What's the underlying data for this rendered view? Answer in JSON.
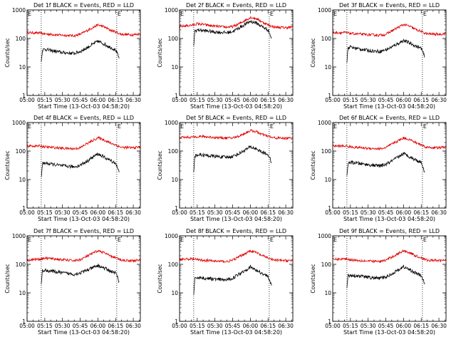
{
  "figure": {
    "x_tick_labels": [
      "05:00",
      "05:15",
      "05:30",
      "05:45",
      "06:00",
      "06:15",
      "06:30"
    ],
    "y_tick_labels": [
      "1",
      "10",
      "100",
      "1000"
    ],
    "xlabel": "Start Time (13-Oct-03 04:58:20)",
    "ylabel": "Counts/sec",
    "marker_label": "E",
    "colors": {
      "events": "#000000",
      "lld": "#e00000",
      "axes": "#000000"
    }
  },
  "chart_data": [
    {
      "type": "line",
      "title": "Det 1f BLACK = Events, RED = LLD",
      "xlabel": "Start Time (13-Oct-03 04:58:20)",
      "ylabel": "Counts/sec",
      "yscale": "log",
      "xlim": [
        "05:00",
        "06:36"
      ],
      "ylim": [
        1,
        1000
      ],
      "xticks": [
        "05:00",
        "05:15",
        "05:30",
        "05:45",
        "06:00",
        "06:15",
        "06:30"
      ],
      "yticks": [
        1,
        10,
        100,
        1000
      ],
      "markers": [
        "05:12",
        "06:16"
      ],
      "x": [
        "05:00",
        "05:12",
        "05:13",
        "05:15",
        "05:20",
        "05:30",
        "05:40",
        "05:45",
        "05:50",
        "06:00",
        "06:05",
        "06:10",
        "06:15",
        "06:18",
        "06:20",
        "06:30",
        "06:36"
      ],
      "series": [
        {
          "name": "LLD",
          "color": "#e00000",
          "values": [
            160,
            155,
            150,
            145,
            140,
            130,
            125,
            140,
            180,
            300,
            260,
            200,
            170,
            150,
            140,
            135,
            145
          ]
        },
        {
          "name": "Events",
          "color": "#000000",
          "values": [
            null,
            15,
            40,
            42,
            38,
            32,
            30,
            35,
            45,
            80,
            65,
            50,
            40,
            20,
            null,
            null,
            null
          ]
        }
      ]
    },
    {
      "type": "line",
      "title": "Det 2f BLACK = Events, RED = LLD",
      "xlabel": "Start Time (13-Oct-03 04:58:20)",
      "ylabel": "Counts/sec",
      "yscale": "log",
      "xlim": [
        "05:00",
        "06:36"
      ],
      "ylim": [
        1,
        1000
      ],
      "xticks": [
        "05:00",
        "05:15",
        "05:30",
        "05:45",
        "06:00",
        "06:15",
        "06:30"
      ],
      "yticks": [
        1,
        10,
        100,
        1000
      ],
      "markers": [
        "05:12",
        "06:16"
      ],
      "x": [
        "05:00",
        "05:12",
        "05:13",
        "05:15",
        "05:20",
        "05:30",
        "05:40",
        "05:45",
        "05:50",
        "06:00",
        "06:05",
        "06:10",
        "06:15",
        "06:18",
        "06:20",
        "06:30",
        "06:36"
      ],
      "series": [
        {
          "name": "LLD",
          "color": "#e00000",
          "values": [
            260,
            300,
            310,
            330,
            310,
            270,
            250,
            260,
            320,
            550,
            500,
            380,
            300,
            270,
            250,
            240,
            250
          ]
        },
        {
          "name": "Events",
          "color": "#000000",
          "values": [
            null,
            60,
            180,
            200,
            190,
            170,
            160,
            175,
            230,
            400,
            350,
            260,
            200,
            100,
            null,
            null,
            null
          ]
        }
      ]
    },
    {
      "type": "line",
      "title": "Det 3f BLACK = Events, RED = LLD",
      "xlabel": "Start Time (13-Oct-03 04:58:20)",
      "ylabel": "Counts/sec",
      "yscale": "log",
      "xlim": [
        "05:00",
        "06:36"
      ],
      "ylim": [
        1,
        1000
      ],
      "xticks": [
        "05:00",
        "05:15",
        "05:30",
        "05:45",
        "06:00",
        "06:15",
        "06:30"
      ],
      "yticks": [
        1,
        10,
        100,
        1000
      ],
      "markers": [
        "05:12",
        "06:16"
      ],
      "x": [
        "05:00",
        "05:12",
        "05:13",
        "05:15",
        "05:20",
        "05:30",
        "05:40",
        "05:45",
        "05:50",
        "06:00",
        "06:05",
        "06:10",
        "06:15",
        "06:18",
        "06:20",
        "06:30",
        "06:36"
      ],
      "series": [
        {
          "name": "LLD",
          "color": "#e00000",
          "values": [
            160,
            160,
            155,
            150,
            145,
            135,
            130,
            140,
            185,
            310,
            270,
            210,
            175,
            155,
            145,
            140,
            150
          ]
        },
        {
          "name": "Events",
          "color": "#000000",
          "values": [
            null,
            15,
            48,
            50,
            45,
            38,
            35,
            40,
            50,
            85,
            70,
            55,
            45,
            22,
            null,
            null,
            null
          ]
        }
      ]
    },
    {
      "type": "line",
      "title": "Det 4f BLACK = Events, RED = LLD",
      "xlabel": "Start Time (13-Oct-03 04:58:20)",
      "ylabel": "Counts/sec",
      "yscale": "log",
      "xlim": [
        "05:00",
        "06:36"
      ],
      "ylim": [
        1,
        1000
      ],
      "xticks": [
        "05:00",
        "05:15",
        "05:30",
        "05:45",
        "06:00",
        "06:15",
        "06:30"
      ],
      "yticks": [
        1,
        10,
        100,
        1000
      ],
      "markers": [
        "05:12",
        "06:16"
      ],
      "x": [
        "05:00",
        "05:12",
        "05:13",
        "05:15",
        "05:20",
        "05:30",
        "05:40",
        "05:45",
        "05:50",
        "06:00",
        "06:05",
        "06:10",
        "06:15",
        "06:18",
        "06:20",
        "06:30",
        "06:36"
      ],
      "series": [
        {
          "name": "LLD",
          "color": "#e00000",
          "values": [
            150,
            150,
            145,
            140,
            135,
            125,
            120,
            130,
            175,
            290,
            250,
            195,
            165,
            145,
            135,
            130,
            140
          ]
        },
        {
          "name": "Events",
          "color": "#000000",
          "values": [
            null,
            12,
            35,
            38,
            35,
            30,
            28,
            32,
            42,
            80,
            62,
            48,
            38,
            18,
            null,
            null,
            null
          ]
        }
      ]
    },
    {
      "type": "line",
      "title": "Det 5f BLACK = Events, RED = LLD",
      "xlabel": "Start Time (13-Oct-03 04:58:20)",
      "ylabel": "Counts/sec",
      "yscale": "log",
      "xlim": [
        "05:00",
        "06:36"
      ],
      "ylim": [
        1,
        1000
      ],
      "xticks": [
        "05:00",
        "05:15",
        "05:30",
        "05:45",
        "06:00",
        "06:15",
        "06:30"
      ],
      "yticks": [
        1,
        10,
        100,
        1000
      ],
      "markers": [
        "05:12",
        "06:16"
      ],
      "x": [
        "05:00",
        "05:12",
        "05:13",
        "05:15",
        "05:20",
        "05:30",
        "05:40",
        "05:45",
        "05:50",
        "06:00",
        "06:05",
        "06:10",
        "06:15",
        "06:18",
        "06:20",
        "06:30",
        "06:36"
      ],
      "series": [
        {
          "name": "LLD",
          "color": "#e00000",
          "values": [
            300,
            310,
            315,
            325,
            320,
            300,
            285,
            290,
            330,
            520,
            480,
            380,
            330,
            300,
            290,
            280,
            285
          ]
        },
        {
          "name": "Events",
          "color": "#000000",
          "values": [
            null,
            20,
            65,
            75,
            72,
            65,
            60,
            65,
            80,
            140,
            120,
            90,
            75,
            40,
            null,
            null,
            null
          ]
        }
      ]
    },
    {
      "type": "line",
      "title": "Det 6f BLACK = Events, RED = LLD",
      "xlabel": "Start Time (13-Oct-03 04:58:20)",
      "ylabel": "Counts/sec",
      "yscale": "log",
      "xlim": [
        "05:00",
        "06:36"
      ],
      "ylim": [
        1,
        1000
      ],
      "xticks": [
        "05:00",
        "05:15",
        "05:30",
        "05:45",
        "06:00",
        "06:15",
        "06:30"
      ],
      "yticks": [
        1,
        10,
        100,
        1000
      ],
      "markers": [
        "05:12",
        "06:16"
      ],
      "x": [
        "05:00",
        "05:12",
        "05:13",
        "05:15",
        "05:20",
        "05:30",
        "05:40",
        "05:45",
        "05:50",
        "06:00",
        "06:05",
        "06:10",
        "06:15",
        "06:18",
        "06:20",
        "06:30",
        "06:36"
      ],
      "series": [
        {
          "name": "LLD",
          "color": "#e00000",
          "values": [
            150,
            150,
            145,
            140,
            135,
            125,
            120,
            130,
            175,
            290,
            255,
            200,
            165,
            145,
            135,
            130,
            140
          ]
        },
        {
          "name": "Events",
          "color": "#000000",
          "values": [
            null,
            12,
            38,
            40,
            38,
            33,
            30,
            34,
            44,
            82,
            64,
            50,
            40,
            18,
            null,
            null,
            null
          ]
        }
      ]
    },
    {
      "type": "line",
      "title": "Det 7f BLACK = Events, RED = LLD",
      "xlabel": "Start Time (13-Oct-03 04:58:20)",
      "ylabel": "Counts/sec",
      "yscale": "log",
      "xlim": [
        "05:00",
        "06:36"
      ],
      "ylim": [
        1,
        1000
      ],
      "xticks": [
        "05:00",
        "05:15",
        "05:30",
        "05:45",
        "06:00",
        "06:15",
        "06:30"
      ],
      "yticks": [
        1,
        10,
        100,
        1000
      ],
      "markers": [
        "05:12",
        "06:16"
      ],
      "x": [
        "05:00",
        "05:12",
        "05:13",
        "05:15",
        "05:20",
        "05:30",
        "05:40",
        "05:45",
        "05:50",
        "06:00",
        "06:05",
        "06:10",
        "06:15",
        "06:18",
        "06:20",
        "06:30",
        "06:36"
      ],
      "series": [
        {
          "name": "LLD",
          "color": "#e00000",
          "values": [
            140,
            155,
            160,
            165,
            160,
            145,
            135,
            145,
            185,
            300,
            260,
            200,
            170,
            150,
            140,
            135,
            140
          ]
        },
        {
          "name": "Events",
          "color": "#000000",
          "values": [
            null,
            20,
            60,
            62,
            58,
            50,
            45,
            50,
            60,
            90,
            75,
            60,
            50,
            25,
            null,
            null,
            null
          ]
        }
      ]
    },
    {
      "type": "line",
      "title": "Det 8f BLACK = Events, RED = LLD",
      "xlabel": "Start Time (13-Oct-03 04:58:20)",
      "ylabel": "Counts/sec",
      "yscale": "log",
      "xlim": [
        "05:00",
        "06:36"
      ],
      "ylim": [
        1,
        1000
      ],
      "xticks": [
        "05:00",
        "05:15",
        "05:30",
        "05:45",
        "06:00",
        "06:15",
        "06:30"
      ],
      "yticks": [
        1,
        10,
        100,
        1000
      ],
      "markers": [
        "05:12",
        "06:16"
      ],
      "x": [
        "05:00",
        "05:12",
        "05:13",
        "05:15",
        "05:20",
        "05:30",
        "05:40",
        "05:45",
        "05:50",
        "06:00",
        "06:05",
        "06:10",
        "06:15",
        "06:18",
        "06:20",
        "06:30",
        "06:36"
      ],
      "series": [
        {
          "name": "LLD",
          "color": "#e00000",
          "values": [
            150,
            155,
            150,
            145,
            140,
            130,
            125,
            140,
            180,
            300,
            260,
            200,
            170,
            150,
            140,
            135,
            140
          ]
        },
        {
          "name": "Events",
          "color": "#000000",
          "values": [
            null,
            8,
            30,
            35,
            33,
            30,
            28,
            33,
            45,
            80,
            62,
            48,
            38,
            18,
            null,
            null,
            null
          ]
        }
      ]
    },
    {
      "type": "line",
      "title": "Det 9f BLACK = Events, RED = LLD",
      "xlabel": "Start Time (13-Oct-03 04:58:20)",
      "ylabel": "Counts/sec",
      "yscale": "log",
      "xlim": [
        "05:00",
        "06:36"
      ],
      "ylim": [
        1,
        1000
      ],
      "xticks": [
        "05:00",
        "05:15",
        "05:30",
        "05:45",
        "06:00",
        "06:15",
        "06:30"
      ],
      "yticks": [
        1,
        10,
        100,
        1000
      ],
      "markers": [
        "05:12",
        "06:16"
      ],
      "x": [
        "05:00",
        "05:12",
        "05:13",
        "05:15",
        "05:20",
        "05:30",
        "05:40",
        "05:45",
        "05:50",
        "06:00",
        "06:05",
        "06:10",
        "06:15",
        "06:18",
        "06:20",
        "06:30",
        "06:36"
      ],
      "series": [
        {
          "name": "LLD",
          "color": "#e00000",
          "values": [
            150,
            155,
            150,
            145,
            140,
            130,
            125,
            140,
            180,
            300,
            260,
            200,
            170,
            150,
            140,
            135,
            140
          ]
        },
        {
          "name": "Events",
          "color": "#000000",
          "values": [
            null,
            15,
            40,
            42,
            40,
            35,
            32,
            36,
            46,
            82,
            65,
            50,
            40,
            20,
            null,
            null,
            null
          ]
        }
      ]
    }
  ]
}
